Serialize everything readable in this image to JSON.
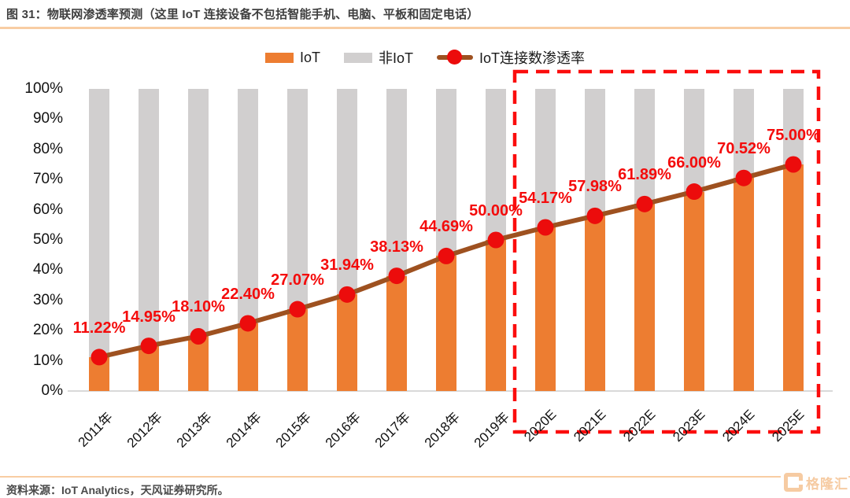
{
  "header": {
    "title": "图 31：物联网渗透率预测（这里 IoT 连接设备不包括智能手机、电脑、平板和固定电话）"
  },
  "footer": {
    "source": "资料来源：IoT Analytics，天风证券研究所。",
    "logo_text": "格隆汇"
  },
  "colors": {
    "iot_orange": "#ED7D31",
    "noniot_gray": "#D1CFCF",
    "line_brown": "#9E5120",
    "marker_red": "#EC0C0C",
    "label_red": "#F40B0B",
    "box_red": "#FB0D0D",
    "accent_peach": "#F8CDA3"
  },
  "chart_data": {
    "type": "bar",
    "subtype": "100%-stacked-column-with-line",
    "title": "物联网渗透率预测",
    "categories": [
      "2011年",
      "2012年",
      "2013年",
      "2014年",
      "2015年",
      "2016年",
      "2017年",
      "2018年",
      "2019年",
      "2020E",
      "2021E",
      "2022E",
      "2023E",
      "2024E",
      "2025E"
    ],
    "series": [
      {
        "name": "IoT",
        "type": "bar",
        "color": "#ED7D31",
        "values": [
          11.22,
          14.95,
          18.1,
          22.4,
          27.07,
          31.94,
          38.13,
          44.69,
          50.0,
          54.17,
          57.98,
          61.89,
          66.0,
          70.52,
          75.0
        ]
      },
      {
        "name": "非IoT",
        "type": "bar",
        "color": "#D1CFCF",
        "values": [
          88.78,
          85.05,
          81.9,
          77.6,
          72.93,
          68.06,
          61.87,
          55.31,
          50.0,
          45.83,
          42.02,
          38.11,
          34.0,
          29.48,
          25.0
        ]
      },
      {
        "name": "IoT连接数渗透率",
        "type": "line",
        "color": "#9E5120",
        "marker_color": "#EC0C0C",
        "values": [
          11.22,
          14.95,
          18.1,
          22.4,
          27.07,
          31.94,
          38.13,
          44.69,
          50.0,
          54.17,
          57.98,
          61.89,
          66.0,
          70.52,
          75.0
        ],
        "data_labels": [
          "11.22%",
          "14.95%",
          "18.10%",
          "22.40%",
          "27.07%",
          "31.94%",
          "38.13%",
          "44.69%",
          "50.00%",
          "54.17%",
          "57.98%",
          "61.89%",
          "66.00%",
          "70.52%",
          "75.00%"
        ]
      }
    ],
    "ylim": [
      0,
      100
    ],
    "yticks": [
      "100%",
      "90%",
      "80%",
      "70%",
      "60%",
      "50%",
      "40%",
      "30%",
      "20%",
      "10%",
      "0%"
    ],
    "grid": false,
    "legend_position": "top-center",
    "highlight_box": {
      "from_category": "2020E",
      "to_category": "2025E",
      "style": "red-dashed"
    }
  }
}
